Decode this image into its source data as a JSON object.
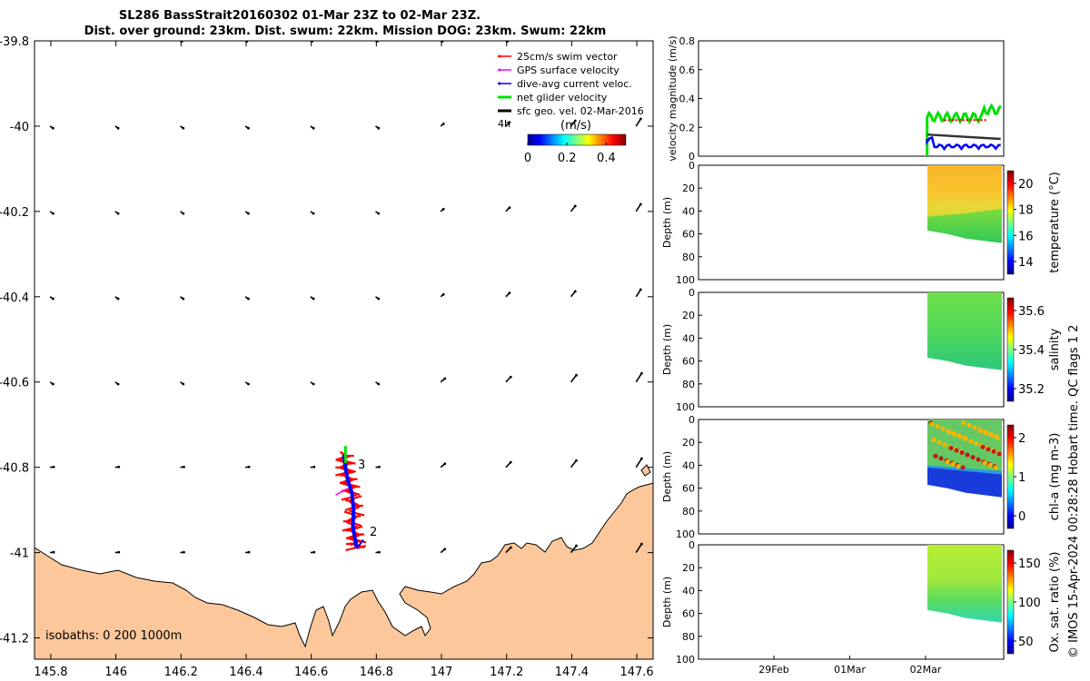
{
  "chart_data": [
    {
      "type": "map",
      "title_line1": "SL286 BassStrait20160302 01-Mar 23Z to 02-Mar 23Z.",
      "title_line2": "Dist. over ground: 23km. Dist. swum: 22km. Mission DOG: 23km. Swum: 22km",
      "xlim": [
        145.75,
        147.65
      ],
      "ylim": [
        -41.25,
        -39.8
      ],
      "x_ticks": [
        145.8,
        146,
        146.2,
        146.4,
        146.6,
        146.8,
        147,
        147.2,
        147.4,
        147.6
      ],
      "x_tick_labels": [
        "145.8",
        "146",
        "146.2",
        "146.4",
        "146.6",
        "146.8",
        "147",
        "147.2",
        "147.4",
        "147.6"
      ],
      "y_ticks": [
        -39.8,
        -40,
        -40.2,
        -40.4,
        -40.6,
        -40.8,
        -41,
        -41.2
      ],
      "y_tick_labels": [
        "-39.8",
        "-40",
        "-40.2",
        "-40.4",
        "-40.6",
        "-40.8",
        "-41",
        "-41.2"
      ],
      "legend": {
        "placement": "top-right",
        "entries": [
          {
            "label": "25cm/s swim vector",
            "color": "#ff0000"
          },
          {
            "label": "GPS surface velocity",
            "color": "#ff00ff"
          },
          {
            "label": "dive-avg current veloc.",
            "color": "#0000ff"
          },
          {
            "label": "net glider velocity",
            "color": "#00e000"
          },
          {
            "label": "sfc geo. vel. 02-Mar-2016",
            "color": "#000000"
          }
        ],
        "extra_label": "4h",
        "colorbar_title": "(m/s)",
        "colorbar_ticks": [
          "0",
          "0.2",
          "0.4"
        ]
      },
      "isobaths_label": "isobaths: 0   200  1000m",
      "track_labels": [
        "3",
        "2"
      ],
      "land_color": "#fcc79a"
    },
    {
      "type": "line",
      "ylabel": "velocity magnitude (m/s)",
      "ylim": [
        0,
        0.8
      ],
      "y_ticks": [
        "0",
        "0.2",
        "0.4",
        "0.6",
        "0.8"
      ]
    },
    {
      "type": "heatmap",
      "ylabel": "Depth (m)",
      "cbar_label": "temperature (°C)",
      "cbar_ticks": [
        "20",
        "18",
        "16",
        "14"
      ],
      "depth_ticks": [
        "0",
        "20",
        "40",
        "60",
        "80",
        "100"
      ]
    },
    {
      "type": "heatmap",
      "ylabel": "Depth (m)",
      "cbar_label": "salinity",
      "cbar_ticks": [
        "35.6",
        "35.4",
        "35.2"
      ],
      "depth_ticks": [
        "0",
        "20",
        "40",
        "60",
        "80",
        "100"
      ]
    },
    {
      "type": "heatmap",
      "ylabel": "Depth (m)",
      "cbar_label": "chl-a (mg m-3)",
      "cbar_ticks": [
        "2",
        "1",
        "0"
      ],
      "depth_ticks": [
        "0",
        "20",
        "40",
        "60",
        "80",
        "100"
      ]
    },
    {
      "type": "heatmap",
      "ylabel": "Depth (m)",
      "cbar_label": "Ox. sat. ratio (%)",
      "cbar_ticks": [
        "150",
        "100",
        "50"
      ],
      "depth_ticks": [
        "0",
        "20",
        "40",
        "60",
        "80",
        "100"
      ],
      "x_tick_labels": [
        "29Feb",
        "01Mar",
        "02Mar"
      ]
    }
  ],
  "footer": "© IMOS 15-Apr-2024 00:28:28 Hobart time. QC flags 1  2"
}
